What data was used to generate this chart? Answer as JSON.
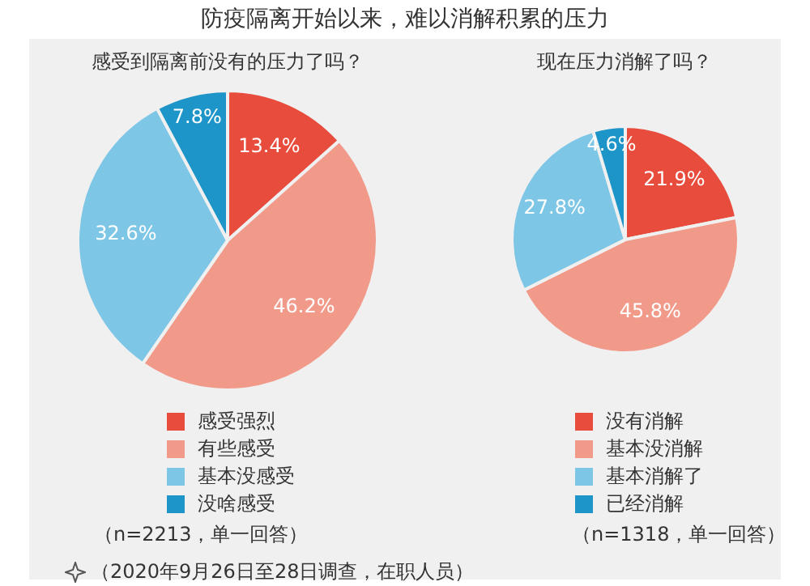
{
  "chart_data": [
    {
      "type": "pie",
      "title": "防疫隔离开始以来，难以消解积累的压力",
      "subtitle": "感受到隔离前没有的压力了吗？",
      "categories": [
        "感受强烈",
        "有些感受",
        "基本没感受",
        "没啥感受"
      ],
      "values": [
        13.4,
        46.2,
        32.6,
        7.8
      ],
      "value_labels": [
        "13.4%",
        "46.2%",
        "32.6%",
        "7.8%"
      ],
      "colors": [
        "#e84c3d",
        "#f29a8a",
        "#7ec6e6",
        "#1e95c8"
      ],
      "legend": "bottom",
      "annotations": [
        "（n=2213，单一回答）",
        "（2020年9月26日至28日调查，在职人员）"
      ]
    },
    {
      "type": "pie",
      "subtitle": "现在压力消解了吗？",
      "categories": [
        "没有消解",
        "基本没消解",
        "基本消解了",
        "已经消解"
      ],
      "values": [
        21.9,
        45.8,
        27.8,
        4.6
      ],
      "value_labels": [
        "21.9%",
        "45.8%",
        "27.8%",
        "4.6%"
      ],
      "colors": [
        "#e84c3d",
        "#f29a8a",
        "#7ec6e6",
        "#1e95c8"
      ],
      "legend": "bottom",
      "annotations": [
        "（n=1318，单一回答）"
      ]
    }
  ]
}
